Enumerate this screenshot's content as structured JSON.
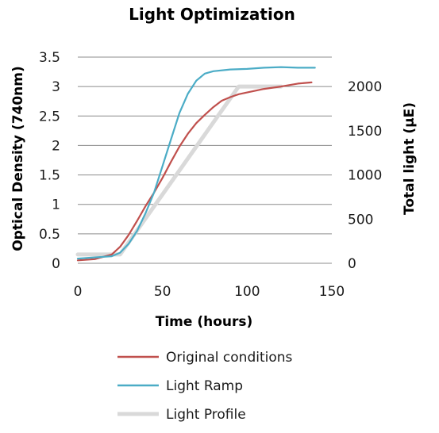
{
  "chart_data": {
    "type": "line",
    "title": "Light Optimization",
    "xlabel": "Time (hours)",
    "ylabel": "Optical Density (740nm)",
    "y2label": "Total light (µE)",
    "xlim": [
      0,
      150
    ],
    "ylim": [
      0,
      3.5
    ],
    "y2lim": [
      0,
      2333.33
    ],
    "xticks": [
      "0",
      "50",
      "100",
      "150"
    ],
    "yticks": [
      "0",
      "0.5",
      "1",
      "1.5",
      "2",
      "2.5",
      "3",
      "3.5"
    ],
    "y2ticks": [
      "0",
      "500",
      "1000",
      "1500",
      "2000"
    ],
    "grid": true,
    "legend_position": "bottom",
    "series": [
      {
        "name": "Original conditions",
        "color": "#c0504d",
        "axis": "left",
        "points": [
          [
            0,
            0.05
          ],
          [
            10,
            0.07
          ],
          [
            20,
            0.15
          ],
          [
            25,
            0.28
          ],
          [
            30,
            0.48
          ],
          [
            35,
            0.72
          ],
          [
            40,
            0.97
          ],
          [
            45,
            1.2
          ],
          [
            50,
            1.45
          ],
          [
            55,
            1.72
          ],
          [
            60,
            1.98
          ],
          [
            65,
            2.2
          ],
          [
            70,
            2.38
          ],
          [
            75,
            2.52
          ],
          [
            80,
            2.65
          ],
          [
            85,
            2.76
          ],
          [
            90,
            2.82
          ],
          [
            95,
            2.87
          ],
          [
            100,
            2.9
          ],
          [
            110,
            2.96
          ],
          [
            120,
            3.0
          ],
          [
            130,
            3.05
          ],
          [
            138,
            3.07
          ]
        ]
      },
      {
        "name": "Light Ramp",
        "color": "#4bacc6",
        "axis": "left",
        "points": [
          [
            0,
            0.08
          ],
          [
            10,
            0.1
          ],
          [
            20,
            0.12
          ],
          [
            25,
            0.18
          ],
          [
            30,
            0.33
          ],
          [
            35,
            0.55
          ],
          [
            40,
            0.85
          ],
          [
            45,
            1.2
          ],
          [
            50,
            1.65
          ],
          [
            55,
            2.1
          ],
          [
            60,
            2.55
          ],
          [
            65,
            2.88
          ],
          [
            70,
            3.1
          ],
          [
            75,
            3.22
          ],
          [
            80,
            3.26
          ],
          [
            90,
            3.29
          ],
          [
            100,
            3.3
          ],
          [
            110,
            3.32
          ],
          [
            120,
            3.33
          ],
          [
            130,
            3.32
          ],
          [
            140,
            3.32
          ]
        ]
      },
      {
        "name": "Light Profile",
        "color": "#d9d9d9",
        "axis": "right",
        "points": [
          [
            0,
            100
          ],
          [
            25,
            100
          ],
          [
            95,
            2000
          ],
          [
            120,
            2000
          ]
        ]
      }
    ]
  }
}
